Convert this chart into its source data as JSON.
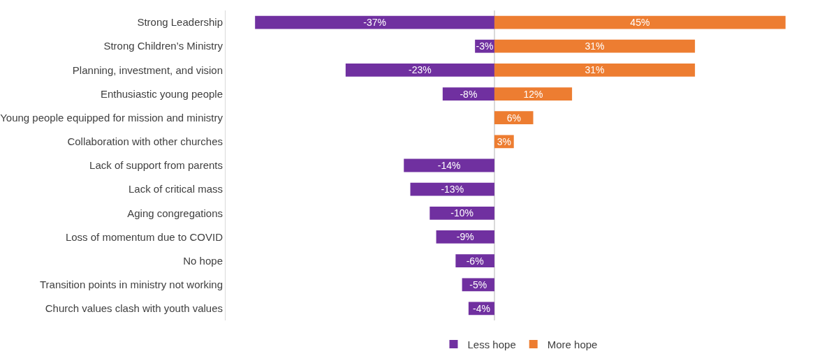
{
  "chart_data": {
    "type": "bar",
    "orientation": "horizontal",
    "stacked": true,
    "legend": "bottom",
    "categories": [
      "Strong Leadership",
      "Strong Children’s Ministry",
      "Planning, investment, and vision",
      "Enthusiastic young people",
      "Young people equipped for mission and ministry",
      "Collaboration with other churches",
      "Lack of support from parents",
      "Lack of critical mass",
      "Aging congregations",
      "Loss of momentum due to COVID",
      "No hope",
      "Transition points in ministry not working",
      "Church values clash with youth values"
    ],
    "series": [
      {
        "name": "Less hope",
        "color": "#7030a0",
        "values": [
          -37,
          -3,
          -23,
          -8,
          null,
          null,
          -14,
          -13,
          -10,
          -9,
          -6,
          -5,
          -4
        ],
        "value_labels": [
          "-37%",
          "-3%",
          "-23%",
          "-8%",
          null,
          null,
          "-14%",
          "-13%",
          "-10%",
          "-9%",
          "-6%",
          "-5%",
          "-4%"
        ]
      },
      {
        "name": "More hope",
        "color": "#ed7d31",
        "values": [
          45,
          31,
          31,
          12,
          6,
          3,
          null,
          null,
          null,
          null,
          null,
          null,
          null
        ],
        "value_labels": [
          "45%",
          "31%",
          "31%",
          "12%",
          "6%",
          "3%",
          null,
          null,
          null,
          null,
          null,
          null,
          null
        ]
      }
    ]
  }
}
